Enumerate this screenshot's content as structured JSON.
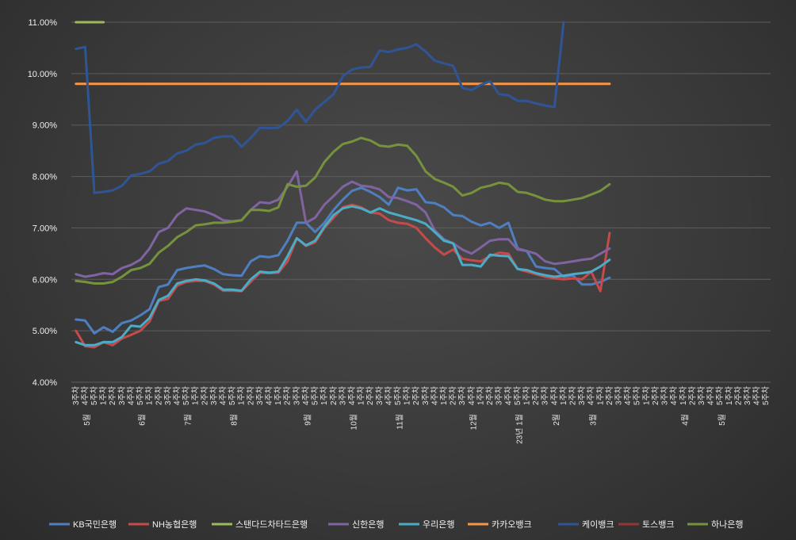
{
  "chart_data": {
    "type": "line",
    "title": "",
    "xlabel": "",
    "ylabel": "",
    "ylim": [
      4.0,
      11.0
    ],
    "y_ticks": [
      "4.00%",
      "5.00%",
      "6.00%",
      "7.00%",
      "8.00%",
      "9.00%",
      "10.00%",
      "11.00%"
    ],
    "grid": true,
    "legend_position": "bottom",
    "x_labels": [
      "3주차",
      "4주차",
      "5주차",
      "1주차",
      "2주차",
      "3주차",
      "4주차",
      "5주차",
      "1주차",
      "2주차",
      "3주차",
      "4주차",
      "5주차",
      "1주차",
      "2주차",
      "3주차",
      "4주차",
      "5주차",
      "1주차",
      "2주차",
      "3주차",
      "4주차",
      "1주차",
      "2주차",
      "3주차",
      "4주차",
      "5주차",
      "1주차",
      "2주차",
      "3주차",
      "4주차",
      "1주차",
      "2주차",
      "3주차",
      "4주차",
      "5주차",
      "1주차",
      "2주차",
      "3주차",
      "4주차",
      "1주차",
      "2주차",
      "3주차",
      "4주차",
      "1주차",
      "2주차",
      "3주차",
      "4주차",
      "5주차",
      "1주차",
      "2주차",
      "3주차",
      "4주차",
      "1주차",
      "2주차",
      "3주차",
      "4주차",
      "1주차",
      "2주차",
      "3주차",
      "4주차",
      "5주차",
      "1주차",
      "2주차",
      "3주차",
      "4주차",
      "1주차",
      "2주차",
      "3주차",
      "4주차",
      "5주차",
      "1주차",
      "2주차",
      "3주차",
      "4주차",
      "5주차"
    ],
    "month_labels": [
      {
        "index": 2,
        "label": "5월"
      },
      {
        "index": 8,
        "label": "6월"
      },
      {
        "index": 13,
        "label": "7월"
      },
      {
        "index": 18,
        "label": "8월"
      },
      {
        "index": 26,
        "label": "9월"
      },
      {
        "index": 31,
        "label": "10월"
      },
      {
        "index": 36,
        "label": "11월"
      },
      {
        "index": 44,
        "label": "12월"
      },
      {
        "index": 49,
        "label": "23년 1월"
      },
      {
        "index": 53,
        "label": "2월"
      },
      {
        "index": 57,
        "label": "3월"
      },
      {
        "index": 67,
        "label": "4월"
      },
      {
        "index": 71,
        "label": "5월"
      }
    ],
    "series": [
      {
        "name": "KB국민은행",
        "color": "#4f7fc0",
        "values": [
          5.22,
          5.2,
          4.95,
          5.07,
          4.98,
          5.15,
          5.2,
          5.3,
          5.42,
          5.85,
          5.9,
          6.18,
          6.22,
          6.25,
          6.27,
          6.2,
          6.1,
          6.08,
          6.07,
          6.35,
          6.45,
          6.43,
          6.47,
          6.75,
          7.1,
          7.1,
          6.92,
          7.1,
          7.35,
          7.55,
          7.72,
          7.78,
          7.7,
          7.6,
          7.45,
          7.78,
          7.73,
          7.75,
          7.5,
          7.48,
          7.4,
          7.25,
          7.23,
          7.12,
          7.05,
          7.1,
          7.0,
          7.1,
          6.6,
          6.55,
          6.25,
          6.22,
          6.2,
          6.05,
          6.08,
          5.9,
          5.9,
          5.95,
          6.03,
          null,
          null,
          null,
          null,
          null,
          null,
          null,
          null,
          null,
          null,
          null,
          null,
          null,
          null,
          null,
          null,
          null
        ]
      },
      {
        "name": "NH농협은행",
        "color": "#c74a4a",
        "values": [
          5.0,
          4.7,
          4.68,
          4.78,
          4.72,
          4.85,
          4.92,
          5.0,
          5.18,
          5.58,
          5.62,
          5.88,
          5.95,
          5.97,
          5.97,
          5.9,
          5.78,
          5.78,
          5.77,
          5.95,
          6.13,
          6.12,
          6.13,
          6.35,
          6.8,
          6.65,
          6.72,
          7.0,
          7.2,
          7.4,
          7.45,
          7.4,
          7.3,
          7.28,
          7.15,
          7.1,
          7.08,
          7.0,
          6.8,
          6.62,
          6.48,
          6.58,
          6.4,
          6.37,
          6.35,
          6.45,
          6.52,
          6.5,
          6.2,
          6.15,
          6.1,
          6.05,
          6.02,
          6.0,
          6.02,
          6.0,
          6.15,
          5.77,
          6.9,
          null,
          null,
          null,
          null,
          null,
          null,
          null,
          null,
          null,
          null,
          null,
          null,
          null,
          null,
          null,
          null,
          null
        ]
      },
      {
        "name": "스탠다드차타드은행",
        "color": "#9bbb59",
        "values": [
          11.0,
          11.0,
          11.0,
          11.0,
          null,
          null,
          null,
          null,
          null,
          null,
          null,
          null,
          null,
          null,
          null,
          null,
          null,
          null,
          null,
          null,
          null,
          null,
          null,
          null,
          null,
          null,
          null,
          null,
          null,
          null,
          null,
          null,
          null,
          null,
          null,
          null,
          null,
          null,
          null,
          null,
          null,
          null,
          null,
          null,
          null,
          null,
          null,
          null,
          null,
          null,
          null,
          null,
          null,
          null,
          null,
          null,
          null,
          null,
          null,
          null,
          null,
          null,
          null,
          null,
          null,
          null,
          null,
          null,
          null,
          null,
          null,
          null,
          null,
          null,
          null,
          null
        ]
      },
      {
        "name": "신한은행",
        "color": "#8064a2",
        "values": [
          6.1,
          6.05,
          6.08,
          6.12,
          6.1,
          6.22,
          6.28,
          6.38,
          6.6,
          6.92,
          7.0,
          7.25,
          7.38,
          7.35,
          7.32,
          7.25,
          7.15,
          7.13,
          7.15,
          7.35,
          7.5,
          7.48,
          7.55,
          7.8,
          8.1,
          7.1,
          7.2,
          7.45,
          7.62,
          7.8,
          7.9,
          7.82,
          7.8,
          7.75,
          7.6,
          7.58,
          7.52,
          7.45,
          7.3,
          6.95,
          6.78,
          6.7,
          6.58,
          6.5,
          6.62,
          6.75,
          6.78,
          6.78,
          6.58,
          6.55,
          6.5,
          6.35,
          6.3,
          6.32,
          6.35,
          6.38,
          6.4,
          6.5,
          6.6,
          null,
          null,
          null,
          null,
          null,
          null,
          null,
          null,
          null,
          null,
          null,
          null,
          null,
          null,
          null,
          null,
          null
        ]
      },
      {
        "name": "우리은행",
        "color": "#4bacc6",
        "values": [
          4.78,
          4.72,
          4.72,
          4.78,
          4.78,
          4.88,
          5.1,
          5.08,
          5.25,
          5.6,
          5.68,
          5.92,
          5.97,
          6.0,
          5.98,
          5.92,
          5.8,
          5.8,
          5.78,
          6.0,
          6.15,
          6.13,
          6.15,
          6.45,
          6.8,
          6.66,
          6.75,
          7.02,
          7.25,
          7.38,
          7.42,
          7.38,
          7.3,
          7.38,
          7.3,
          7.25,
          7.2,
          7.15,
          7.08,
          6.92,
          6.75,
          6.7,
          6.28,
          6.28,
          6.25,
          6.48,
          6.46,
          6.45,
          6.2,
          6.18,
          6.12,
          6.08,
          6.05,
          6.07,
          6.1,
          6.12,
          6.15,
          6.25,
          6.38,
          null,
          null,
          null,
          null,
          null,
          null,
          null,
          null,
          null,
          null,
          null,
          null,
          null,
          null,
          null,
          null,
          null
        ]
      },
      {
        "name": "카카오뱅크",
        "color": "#f79646",
        "values": [
          9.8,
          9.8,
          9.8,
          9.8,
          9.8,
          9.8,
          9.8,
          9.8,
          9.8,
          9.8,
          9.8,
          9.8,
          9.8,
          9.8,
          9.8,
          9.8,
          9.8,
          9.8,
          9.8,
          9.8,
          9.8,
          9.8,
          9.8,
          9.8,
          9.8,
          9.8,
          9.8,
          9.8,
          9.8,
          9.8,
          9.8,
          9.8,
          9.8,
          9.8,
          9.8,
          9.8,
          9.8,
          9.8,
          9.8,
          9.8,
          9.8,
          9.8,
          9.8,
          9.8,
          9.8,
          9.8,
          9.8,
          9.8,
          9.8,
          9.8,
          9.8,
          9.8,
          9.8,
          9.8,
          9.8,
          9.8,
          9.8,
          9.8,
          9.8,
          null,
          null,
          null,
          null,
          null,
          null,
          null,
          null,
          null,
          null,
          null,
          null,
          null,
          null,
          null,
          null,
          null
        ]
      },
      {
        "name": "케이뱅크",
        "color": "#2f5597",
        "values": [
          10.48,
          10.52,
          7.68,
          7.7,
          7.73,
          7.82,
          8.02,
          8.05,
          8.1,
          8.25,
          8.3,
          8.45,
          8.5,
          8.62,
          8.65,
          8.75,
          8.78,
          8.78,
          8.58,
          8.75,
          8.95,
          8.94,
          8.95,
          9.08,
          9.3,
          9.06,
          9.3,
          9.45,
          9.6,
          9.95,
          10.08,
          10.12,
          10.13,
          10.45,
          10.42,
          10.47,
          10.5,
          10.57,
          10.43,
          10.25,
          10.2,
          10.15,
          9.72,
          9.68,
          9.78,
          9.85,
          9.6,
          9.58,
          9.47,
          9.47,
          9.42,
          9.38,
          9.35,
          11.0,
          null,
          null,
          null,
          null,
          null,
          null,
          null,
          null,
          null,
          null,
          null,
          null,
          null,
          null,
          null,
          null,
          null,
          null,
          null,
          null,
          null,
          null
        ]
      },
      {
        "name": "토스뱅크",
        "color": "#943634",
        "values": []
      },
      {
        "name": "하나은행",
        "color": "#76923c",
        "values": [
          5.97,
          5.95,
          5.92,
          5.92,
          5.95,
          6.05,
          6.18,
          6.22,
          6.3,
          6.52,
          6.65,
          6.82,
          6.92,
          7.05,
          7.07,
          7.1,
          7.1,
          7.12,
          7.15,
          7.35,
          7.35,
          7.33,
          7.4,
          7.85,
          7.8,
          7.82,
          7.98,
          8.28,
          8.48,
          8.63,
          8.68,
          8.75,
          8.7,
          8.6,
          8.58,
          8.62,
          8.6,
          8.4,
          8.1,
          7.95,
          7.88,
          7.8,
          7.63,
          7.68,
          7.78,
          7.82,
          7.88,
          7.85,
          7.7,
          7.68,
          7.62,
          7.55,
          7.52,
          7.52,
          7.55,
          7.58,
          7.65,
          7.72,
          7.85,
          null,
          null,
          null,
          null,
          null,
          null,
          null,
          null,
          null,
          null,
          null,
          null,
          null,
          null,
          null,
          null,
          null
        ]
      }
    ]
  }
}
